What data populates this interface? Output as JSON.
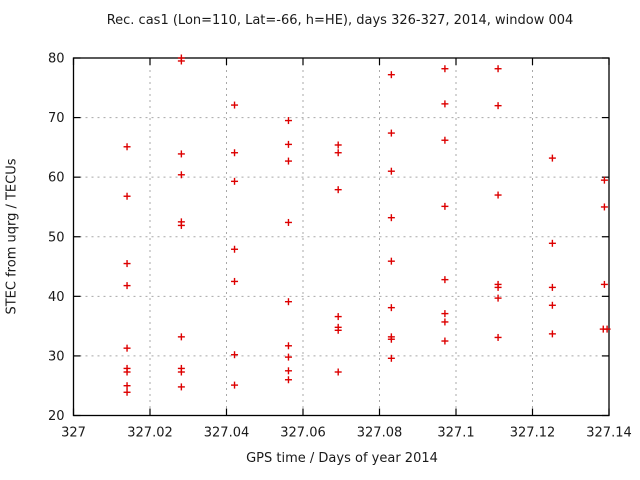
{
  "title": "Rec. cas1 (Lon=110, Lat=-66, h=HE), days 326-327, 2014, window 004",
  "chart_data": {
    "type": "scatter",
    "title": "Rec. cas1 (Lon=110, Lat=-66, h=HE), days 326-327, 2014, window 004",
    "xlabel": "GPS time / Days of year 2014",
    "ylabel": "STEC from uqrg / TECUs",
    "xlim": [
      327,
      327.14
    ],
    "ylim": [
      20,
      80
    ],
    "xticks": [
      327,
      327.02,
      327.04,
      327.06,
      327.08,
      327.1,
      327.12,
      327.14
    ],
    "xtick_labels": [
      "327",
      "327.02",
      "327.04",
      "327.06",
      "327.08",
      "327.1",
      "327.12",
      "327.14"
    ],
    "yticks": [
      20,
      30,
      40,
      50,
      60,
      70,
      80
    ],
    "ytick_labels": [
      "20",
      "30",
      "40",
      "50",
      "60",
      "70",
      "80"
    ],
    "grid": true,
    "legend_position": "none",
    "marker_shape": "plus",
    "marker_color": "#dd0000",
    "grid_color": "#a8a8a8",
    "border_color": "#000000",
    "series": [
      {
        "name": "STEC from uqrg",
        "points": [
          [
            327.014,
            65.1
          ],
          [
            327.014,
            56.8
          ],
          [
            327.014,
            45.5
          ],
          [
            327.014,
            41.8
          ],
          [
            327.014,
            31.3
          ],
          [
            327.014,
            27.9
          ],
          [
            327.014,
            27.3
          ],
          [
            327.014,
            25.0
          ],
          [
            327.014,
            23.9
          ],
          [
            327.0282,
            80.0
          ],
          [
            327.0282,
            79.5
          ],
          [
            327.0282,
            63.9
          ],
          [
            327.0282,
            60.4
          ],
          [
            327.0282,
            52.5
          ],
          [
            327.0282,
            51.9
          ],
          [
            327.0282,
            33.2
          ],
          [
            327.0282,
            27.9
          ],
          [
            327.0282,
            27.3
          ],
          [
            327.0282,
            24.8
          ],
          [
            327.0421,
            72.1
          ],
          [
            327.0421,
            64.1
          ],
          [
            327.0421,
            59.3
          ],
          [
            327.0421,
            47.9
          ],
          [
            327.0421,
            42.5
          ],
          [
            327.0421,
            30.2
          ],
          [
            327.0421,
            25.1
          ],
          [
            327.0562,
            69.5
          ],
          [
            327.0562,
            65.5
          ],
          [
            327.0562,
            62.7
          ],
          [
            327.0562,
            52.4
          ],
          [
            327.0562,
            39.1
          ],
          [
            327.0562,
            31.7
          ],
          [
            327.0562,
            29.8
          ],
          [
            327.0562,
            27.5
          ],
          [
            327.0562,
            26.0
          ],
          [
            327.0692,
            65.4
          ],
          [
            327.0692,
            64.1
          ],
          [
            327.0692,
            57.9
          ],
          [
            327.0692,
            36.6
          ],
          [
            327.0692,
            34.8
          ],
          [
            327.0692,
            34.3
          ],
          [
            327.0692,
            27.3
          ],
          [
            327.0831,
            77.2
          ],
          [
            327.0831,
            67.4
          ],
          [
            327.0831,
            61.0
          ],
          [
            327.0831,
            53.2
          ],
          [
            327.0831,
            45.9
          ],
          [
            327.0831,
            38.1
          ],
          [
            327.0831,
            33.2
          ],
          [
            327.0831,
            32.8
          ],
          [
            327.0831,
            29.6
          ],
          [
            327.0971,
            78.2
          ],
          [
            327.0971,
            72.3
          ],
          [
            327.0971,
            66.2
          ],
          [
            327.0971,
            55.1
          ],
          [
            327.0971,
            42.8
          ],
          [
            327.0971,
            37.1
          ],
          [
            327.0971,
            35.7
          ],
          [
            327.0971,
            32.5
          ],
          [
            327.111,
            78.2
          ],
          [
            327.111,
            72.0
          ],
          [
            327.111,
            57.0
          ],
          [
            327.111,
            42.0
          ],
          [
            327.111,
            41.5
          ],
          [
            327.111,
            39.7
          ],
          [
            327.111,
            33.1
          ],
          [
            327.1252,
            63.2
          ],
          [
            327.1252,
            48.9
          ],
          [
            327.1252,
            41.5
          ],
          [
            327.1252,
            38.5
          ],
          [
            327.1252,
            33.7
          ],
          [
            327.1388,
            59.5
          ],
          [
            327.1388,
            55.0
          ],
          [
            327.1388,
            42.0
          ],
          [
            327.1385,
            34.5
          ],
          [
            327.1395,
            34.5
          ]
        ]
      }
    ]
  }
}
